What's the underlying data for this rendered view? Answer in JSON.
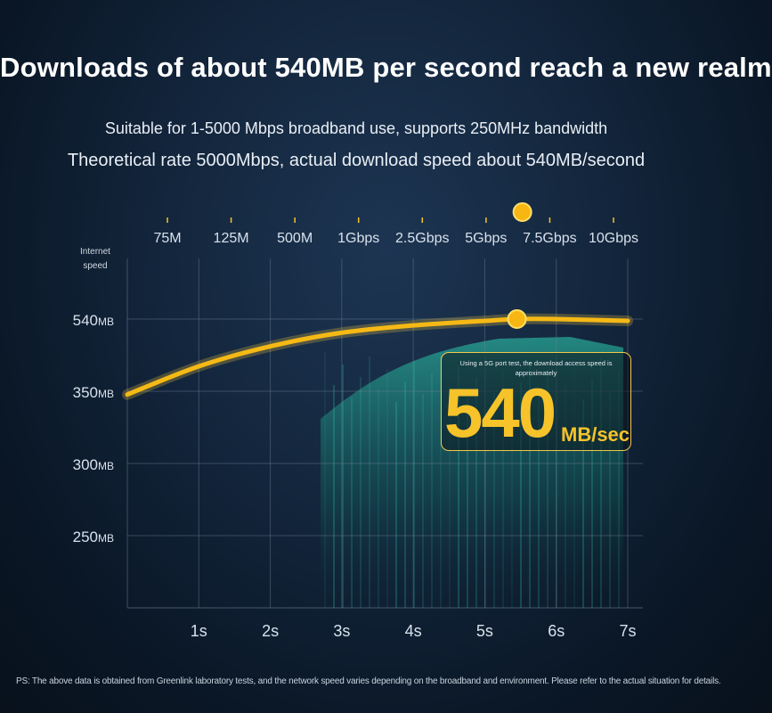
{
  "headline": "Downloads of about 540MB per second reach a new realm",
  "subtitle_1": "Suitable for 1-5000 Mbps broadband use, supports 250MHz bandwidth",
  "subtitle_2": "Theoretical rate 5000Mbps, actual download speed about 540MB/second",
  "callout": {
    "text": "Using a 5G port test, the download access speed is approximately",
    "value": "540",
    "unit": "MB/sec"
  },
  "footnote": "PS: The above data is obtained from Greenlink laboratory tests, and the network speed varies depending on the broadband and environment. Please refer to the actual situation for details.",
  "colors": {
    "accent": "#f6c32a",
    "curve": "#f5b916",
    "grid": "#6c7f95",
    "background": "#12243a"
  },
  "chart_data": {
    "type": "line",
    "bandwidth_scale": {
      "labels": [
        "75M",
        "125M",
        "500M",
        "1Gbps",
        "2.5Gbps",
        "5Gbps",
        "7.5Gbps",
        "10Gbps"
      ],
      "marker_between": [
        "5Gbps",
        "7.5Gbps"
      ]
    },
    "ylabel": "Internet\nspeed",
    "y_ticks": [
      {
        "label": "540",
        "unit": "MB"
      },
      {
        "label": "350",
        "unit": "MB"
      },
      {
        "label": "300",
        "unit": "MB"
      },
      {
        "label": "250",
        "unit": "MB"
      }
    ],
    "x_ticks": [
      "1s",
      "2s",
      "3s",
      "4s",
      "5s",
      "6s",
      "7s"
    ],
    "xlim": [
      0,
      7
    ],
    "series": [
      {
        "x": [
          0,
          1,
          2,
          3,
          4,
          5,
          5.45,
          6,
          7
        ],
        "y_level": [
          0.17,
          0.48,
          0.7,
          0.85,
          0.93,
          0.98,
          1.0,
          1.0,
          0.98
        ]
      }
    ],
    "marker": {
      "x": 5.45,
      "y_level": 1.0
    },
    "grid": true
  }
}
